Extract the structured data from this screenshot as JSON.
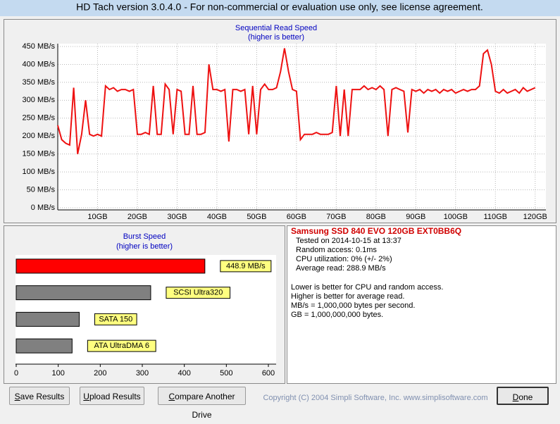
{
  "window": {
    "title": "HD Tach version 3.0.4.0  - For non-commercial or evaluation use only, see license agreement."
  },
  "chart_data": [
    {
      "type": "line",
      "title": "Sequential Read Speed",
      "subtitle": "(higher is better)",
      "color": "#ee1111",
      "x": [
        0,
        1,
        2,
        3,
        4,
        5,
        6,
        7,
        8,
        9,
        10,
        11,
        12,
        13,
        14,
        15,
        16,
        17,
        18,
        19,
        20,
        21,
        22,
        23,
        24,
        25,
        26,
        27,
        28,
        29,
        30,
        31,
        32,
        33,
        34,
        35,
        36,
        37,
        38,
        39,
        40,
        41,
        42,
        43,
        44,
        45,
        46,
        47,
        48,
        49,
        50,
        51,
        52,
        53,
        54,
        55,
        56,
        57,
        58,
        59,
        60,
        61,
        62,
        63,
        64,
        65,
        66,
        67,
        68,
        69,
        70,
        71,
        72,
        73,
        74,
        75,
        76,
        77,
        78,
        79,
        80,
        81,
        82,
        83,
        84,
        85,
        86,
        87,
        88,
        89,
        90,
        91,
        92,
        93,
        94,
        95,
        96,
        97,
        98,
        99,
        100,
        101,
        102,
        103,
        104,
        105,
        106,
        107,
        108,
        109,
        110,
        111,
        112,
        113,
        114,
        115,
        116,
        117,
        118,
        119,
        120
      ],
      "values": [
        230,
        190,
        180,
        175,
        335,
        150,
        205,
        300,
        205,
        200,
        205,
        200,
        340,
        330,
        335,
        325,
        330,
        330,
        325,
        330,
        205,
        205,
        210,
        205,
        340,
        205,
        205,
        345,
        330,
        205,
        330,
        325,
        205,
        205,
        340,
        205,
        205,
        210,
        400,
        330,
        330,
        325,
        330,
        185,
        330,
        330,
        325,
        330,
        205,
        340,
        205,
        330,
        345,
        330,
        330,
        335,
        380,
        445,
        380,
        330,
        325,
        190,
        205,
        205,
        205,
        210,
        205,
        205,
        205,
        210,
        340,
        200,
        330,
        200,
        330,
        330,
        330,
        340,
        330,
        335,
        330,
        340,
        330,
        200,
        330,
        335,
        330,
        325,
        210,
        330,
        325,
        330,
        320,
        330,
        325,
        330,
        320,
        330,
        325,
        330,
        320,
        325,
        330,
        325,
        330,
        330,
        340,
        430,
        440,
        400,
        325,
        320,
        330,
        320,
        325,
        330,
        320,
        335,
        325,
        330,
        335
      ],
      "xlim": [
        0,
        122.7
      ],
      "ylim": [
        0,
        450
      ],
      "xticks": [
        {
          "value": 10,
          "label": "10GB"
        },
        {
          "value": 20,
          "label": "20GB"
        },
        {
          "value": 30,
          "label": "30GB"
        },
        {
          "value": 40,
          "label": "40GB"
        },
        {
          "value": 50,
          "label": "50GB"
        },
        {
          "value": 60,
          "label": "60GB"
        },
        {
          "value": 70,
          "label": "70GB"
        },
        {
          "value": 80,
          "label": "80GB"
        },
        {
          "value": 90,
          "label": "90GB"
        },
        {
          "value": 100,
          "label": "100GB"
        },
        {
          "value": 110,
          "label": "110GB"
        },
        {
          "value": 120,
          "label": "120GB"
        }
      ],
      "yticks": [
        {
          "value": 0,
          "label": "0 MB/s"
        },
        {
          "value": 50,
          "label": "50 MB/s"
        },
        {
          "value": 100,
          "label": "100 MB/s"
        },
        {
          "value": 150,
          "label": "150 MB/s"
        },
        {
          "value": 200,
          "label": "200 MB/s"
        },
        {
          "value": 250,
          "label": "250 MB/s"
        },
        {
          "value": 300,
          "label": "300 MB/s"
        },
        {
          "value": 350,
          "label": "350 MB/s"
        },
        {
          "value": 400,
          "label": "400 MB/s"
        },
        {
          "value": 450,
          "label": "450 MB/s"
        }
      ],
      "grid": true
    },
    {
      "type": "hbar",
      "title": "Burst Speed",
      "subtitle": "(higher is better)",
      "categories": [
        null,
        "SCSI Ultra320",
        "SATA 150",
        "ATA UltraDMA 6"
      ],
      "values": [
        448.9,
        320,
        150,
        133
      ],
      "value_labels": [
        "448.9 MB/s",
        null,
        null,
        null
      ],
      "colors": [
        "#ff0000",
        "#808080",
        "#808080",
        "#808080"
      ],
      "xlim": [
        0,
        618
      ],
      "xticks": [
        0,
        100,
        200,
        300,
        400,
        500,
        600
      ]
    }
  ],
  "info": {
    "drive": "Samsung SSD 840 EVO 120GB EXT0BB6Q",
    "lines": [
      "Tested on 2014-10-15 at 13:37",
      "Random access: 0.1ms",
      "CPU utilization: 0% (+/- 2%)",
      "Average read: 288.9 MB/s"
    ],
    "notes": [
      "Lower is better for CPU and random access.",
      "Higher is better for average read.",
      "MB/s = 1,000,000 bytes per second.",
      "GB = 1,000,000,000 bytes."
    ]
  },
  "buttons": [
    "Save Results",
    "Upload Results",
    "Compare Another Drive",
    "Done"
  ],
  "copyright": "Copyright (C) 2004 Simpli Software, Inc. www.simplisoftware.com"
}
